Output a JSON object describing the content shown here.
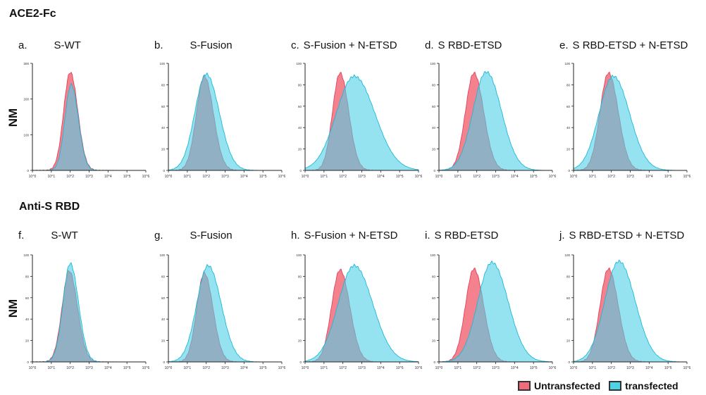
{
  "rows": [
    {
      "title": "ACE2-Fc",
      "ylabel": "NM"
    },
    {
      "title": "Anti-S RBD",
      "ylabel": "NM"
    }
  ],
  "legend": {
    "untransfected": "Untransfected",
    "transfected": "transfected"
  },
  "colors": {
    "untransfected": "#f26b7a",
    "transfected": "#4fd1e6",
    "overlap": "#8a8fb0"
  },
  "chart_data": [
    {
      "type": "area",
      "letter": "a.",
      "title": "S-WT",
      "ylim": [
        0,
        300
      ],
      "yticks": [
        "0",
        "100",
        "200",
        "300"
      ],
      "xticks": [
        "10^0",
        "10^1",
        "10^2",
        "10^3",
        "10^4",
        "10^5",
        "10^6"
      ],
      "series": [
        {
          "name": "Untransfected",
          "peak_log": 2.0,
          "width": 0.35,
          "peak": 275
        },
        {
          "name": "transfected",
          "peak_log": 2.05,
          "width": 0.33,
          "peak": 240
        }
      ]
    },
    {
      "type": "area",
      "letter": "b.",
      "title": "S-Fusion",
      "ylim": [
        0,
        100
      ],
      "yticks": [
        "0",
        "20",
        "40",
        "60",
        "80",
        "100"
      ],
      "xticks": [
        "10^0",
        "10^1",
        "10^2",
        "10^3",
        "10^4",
        "10^5",
        "10^6"
      ],
      "series": [
        {
          "name": "Untransfected",
          "peak_log": 1.9,
          "width": 0.42,
          "peak": 88
        },
        {
          "name": "transfected",
          "peak_log": 2.0,
          "width": 0.6,
          "peak": 90
        }
      ]
    },
    {
      "type": "area",
      "letter": "c.",
      "title": "S-Fusion + N-ETSD",
      "ylim": [
        0,
        100
      ],
      "yticks": [
        "0",
        "20",
        "40",
        "60",
        "80",
        "100"
      ],
      "xticks": [
        "10^0",
        "10^1",
        "10^2",
        "10^3",
        "10^4",
        "10^5",
        "10^6"
      ],
      "series": [
        {
          "name": "Untransfected",
          "peak_log": 1.85,
          "width": 0.4,
          "peak": 91
        },
        {
          "name": "transfected",
          "peak_log": 2.6,
          "width": 0.95,
          "peak": 88
        }
      ]
    },
    {
      "type": "area",
      "letter": "d.",
      "title": "S RBD-ETSD",
      "ylim": [
        0,
        100
      ],
      "yticks": [
        "0",
        "20",
        "40",
        "60",
        "80",
        "100"
      ],
      "xticks": [
        "10^0",
        "10^1",
        "10^2",
        "10^3",
        "10^4",
        "10^5",
        "10^6"
      ],
      "series": [
        {
          "name": "Untransfected",
          "peak_log": 1.85,
          "width": 0.45,
          "peak": 91
        },
        {
          "name": "transfected",
          "peak_log": 2.5,
          "width": 0.7,
          "peak": 92
        }
      ]
    },
    {
      "type": "area",
      "letter": "e.",
      "title": "S RBD-ETSD + N-ETSD",
      "ylim": [
        0,
        100
      ],
      "yticks": [
        "0",
        "20",
        "40",
        "60",
        "80",
        "100"
      ],
      "xticks": [
        "10^0",
        "10^1",
        "10^2",
        "10^3",
        "10^4",
        "10^5",
        "10^6"
      ],
      "series": [
        {
          "name": "Untransfected",
          "peak_log": 1.85,
          "width": 0.45,
          "peak": 91
        },
        {
          "name": "transfected",
          "peak_log": 2.1,
          "width": 0.75,
          "peak": 88
        }
      ]
    },
    {
      "type": "area",
      "letter": "f.",
      "title": "S-WT",
      "ylim": [
        0,
        100
      ],
      "yticks": [
        "0",
        "20",
        "40",
        "60",
        "80",
        "100"
      ],
      "xticks": [
        "10^0",
        "10^1",
        "10^2",
        "10^3",
        "10^4",
        "10^5",
        "10^6"
      ],
      "series": [
        {
          "name": "Untransfected",
          "peak_log": 1.95,
          "width": 0.38,
          "peak": 85
        },
        {
          "name": "transfected",
          "peak_log": 2.0,
          "width": 0.38,
          "peak": 92
        }
      ]
    },
    {
      "type": "area",
      "letter": "g.",
      "title": "S-Fusion",
      "ylim": [
        0,
        100
      ],
      "yticks": [
        "0",
        "20",
        "40",
        "60",
        "80",
        "100"
      ],
      "xticks": [
        "10^0",
        "10^1",
        "10^2",
        "10^3",
        "10^4",
        "10^5",
        "10^6"
      ],
      "series": [
        {
          "name": "Untransfected",
          "peak_log": 1.9,
          "width": 0.4,
          "peak": 83
        },
        {
          "name": "transfected",
          "peak_log": 2.1,
          "width": 0.6,
          "peak": 90
        }
      ]
    },
    {
      "type": "area",
      "letter": "h.",
      "title": "S-Fusion + N-ETSD",
      "ylim": [
        0,
        100
      ],
      "yticks": [
        "0",
        "20",
        "40",
        "60",
        "80",
        "100"
      ],
      "xticks": [
        "10^0",
        "10^1",
        "10^2",
        "10^3",
        "10^4",
        "10^5",
        "10^6"
      ],
      "series": [
        {
          "name": "Untransfected",
          "peak_log": 1.85,
          "width": 0.45,
          "peak": 86
        },
        {
          "name": "transfected",
          "peak_log": 2.6,
          "width": 0.85,
          "peak": 90
        }
      ]
    },
    {
      "type": "area",
      "letter": "i.",
      "title": "S RBD-ETSD",
      "ylim": [
        0,
        100
      ],
      "yticks": [
        "0",
        "20",
        "40",
        "60",
        "80",
        "100"
      ],
      "xticks": [
        "10^0",
        "10^1",
        "10^2",
        "10^3",
        "10^4",
        "10^5",
        "10^6"
      ],
      "series": [
        {
          "name": "Untransfected",
          "peak_log": 1.85,
          "width": 0.45,
          "peak": 87
        },
        {
          "name": "transfected",
          "peak_log": 2.8,
          "width": 0.75,
          "peak": 93
        }
      ]
    },
    {
      "type": "area",
      "letter": "j.",
      "title": "S RBD-ETSD + N-ETSD",
      "ylim": [
        0,
        100
      ],
      "yticks": [
        "0",
        "20",
        "40",
        "60",
        "80",
        "100"
      ],
      "xticks": [
        "10^0",
        "10^1",
        "10^2",
        "10^3",
        "10^4",
        "10^5",
        "10^6"
      ],
      "series": [
        {
          "name": "Untransfected",
          "peak_log": 1.85,
          "width": 0.45,
          "peak": 87
        },
        {
          "name": "transfected",
          "peak_log": 2.4,
          "width": 0.75,
          "peak": 94
        }
      ]
    }
  ]
}
